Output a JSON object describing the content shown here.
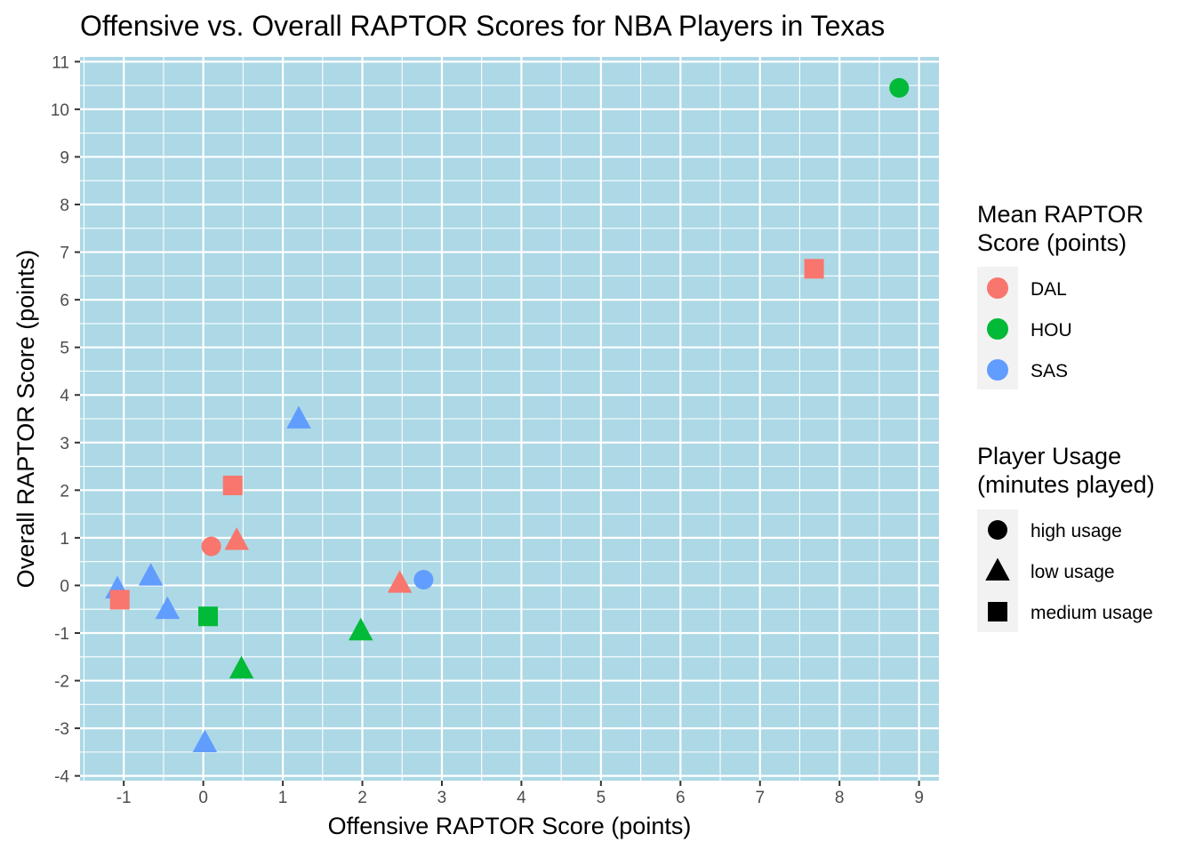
{
  "chart_data": {
    "type": "scatter",
    "title": "Offensive vs. Overall RAPTOR Scores for NBA Players in Texas",
    "xlabel": "Offensive RAPTOR Score (points)",
    "ylabel": "Overall RAPTOR Score (points)",
    "xlim": [
      -1.55,
      9.25
    ],
    "ylim": [
      -4.1,
      11.1
    ],
    "x_ticks": [
      -1,
      0,
      1,
      2,
      3,
      4,
      5,
      6,
      7,
      8,
      9
    ],
    "x_tick_labels": [
      "-1",
      "0",
      "1",
      "2",
      "3",
      "4",
      "5",
      "6",
      "7",
      "8",
      "9"
    ],
    "y_ticks": [
      -4,
      -3,
      -2,
      -1,
      0,
      1,
      2,
      3,
      4,
      5,
      6,
      7,
      8,
      9,
      10,
      11
    ],
    "y_tick_labels": [
      "-4",
      "-3",
      "-2",
      "-1",
      "0",
      "1",
      "2",
      "3",
      "4",
      "5",
      "6",
      "7",
      "8",
      "9",
      "10",
      "11"
    ],
    "grid": true,
    "panel_background": "#add8e6",
    "legend_placement": "right",
    "legends": {
      "color": {
        "title_lines": [
          "Mean RAPTOR",
          "Score (points)"
        ],
        "entries": [
          {
            "label": "DAL",
            "color": "#f8766d"
          },
          {
            "label": "HOU",
            "color": "#00ba38"
          },
          {
            "label": "SAS",
            "color": "#619cff"
          }
        ]
      },
      "shape": {
        "title_lines": [
          "Player Usage",
          "(minutes played)"
        ],
        "entries": [
          {
            "label": "high usage",
            "shape": "circle"
          },
          {
            "label": "low usage",
            "shape": "triangle"
          },
          {
            "label": "medium usage",
            "shape": "square"
          }
        ]
      }
    },
    "points": [
      {
        "x": 8.75,
        "y": 10.45,
        "team": "HOU",
        "usage": "high usage"
      },
      {
        "x": 7.68,
        "y": 6.65,
        "team": "DAL",
        "usage": "medium usage"
      },
      {
        "x": 1.2,
        "y": 3.5,
        "team": "SAS",
        "usage": "low usage"
      },
      {
        "x": 0.37,
        "y": 2.1,
        "team": "DAL",
        "usage": "medium usage"
      },
      {
        "x": 0.42,
        "y": 0.95,
        "team": "DAL",
        "usage": "low usage"
      },
      {
        "x": 0.1,
        "y": 0.82,
        "team": "DAL",
        "usage": "high usage"
      },
      {
        "x": 2.47,
        "y": 0.05,
        "team": "DAL",
        "usage": "low usage"
      },
      {
        "x": 2.77,
        "y": 0.12,
        "team": "SAS",
        "usage": "high usage"
      },
      {
        "x": -0.66,
        "y": 0.2,
        "team": "SAS",
        "usage": "low usage"
      },
      {
        "x": -1.08,
        "y": -0.07,
        "team": "SAS",
        "usage": "low usage"
      },
      {
        "x": -1.05,
        "y": -0.3,
        "team": "DAL",
        "usage": "medium usage"
      },
      {
        "x": -0.45,
        "y": -0.5,
        "team": "SAS",
        "usage": "low usage"
      },
      {
        "x": 0.06,
        "y": -0.65,
        "team": "HOU",
        "usage": "medium usage"
      },
      {
        "x": 1.98,
        "y": -0.95,
        "team": "HOU",
        "usage": "low usage"
      },
      {
        "x": 0.48,
        "y": -1.75,
        "team": "HOU",
        "usage": "low usage"
      },
      {
        "x": 0.02,
        "y": -3.3,
        "team": "SAS",
        "usage": "low usage"
      }
    ]
  }
}
